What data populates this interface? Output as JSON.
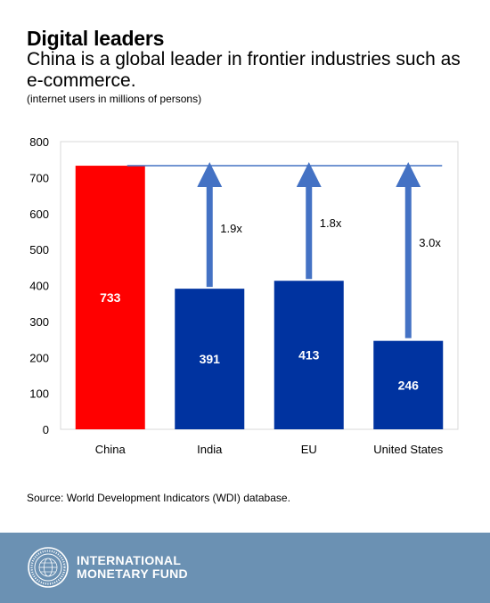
{
  "header": {
    "title": "Digital leaders",
    "subtitle": "China is a global leader in frontier industries such as e-commerce.",
    "note": "(internet users in millions of persons)"
  },
  "chart_data": {
    "type": "bar",
    "categories": [
      "China",
      "India",
      "EU",
      "United States"
    ],
    "values": [
      733,
      391,
      413,
      246
    ],
    "value_labels": [
      "733",
      "391",
      "413",
      "246"
    ],
    "multipliers": [
      "",
      "1.9x",
      "1.8x",
      "3.0x"
    ],
    "ylim": [
      0,
      800
    ],
    "yticks": [
      0,
      100,
      200,
      300,
      400,
      500,
      600,
      700,
      800
    ],
    "grid": false,
    "reference_line": 733,
    "colors": {
      "highlight": "#ff0000",
      "bar": "#0033a0",
      "arrow": "#4472c4",
      "line": "#4472c4",
      "axis": "#d9d9d9"
    }
  },
  "source": "Source: World Development Indicators (WDI) database.",
  "footer": {
    "org_line1": "INTERNATIONAL",
    "org_line2": "MONETARY FUND",
    "background": "#6b91b3"
  }
}
